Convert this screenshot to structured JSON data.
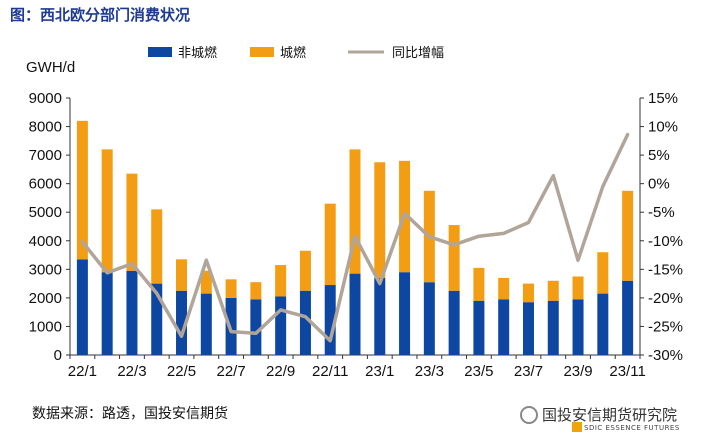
{
  "figure_title": "图：西北欧分部门消费状况",
  "source_note": "数据来源：路透，国投安信期货",
  "watermark": {
    "name": "国投安信期货研究院",
    "subtitle": "SDIC ESSENCE FUTURES"
  },
  "colors": {
    "non_city_gas": "#0d47a1",
    "city_gas": "#f29d13",
    "yoy_line": "#b1a59a",
    "title": "#1f3a93"
  },
  "chart_data": {
    "type": "bar",
    "stacked": true,
    "ylabel": "GWH/d",
    "ylim": [
      0,
      9000
    ],
    "yticks": [
      0,
      1000,
      2000,
      3000,
      4000,
      5000,
      6000,
      7000,
      8000,
      9000
    ],
    "y2lim": [
      -30,
      15
    ],
    "y2ticks": [
      "-30%",
      "-25%",
      "-20%",
      "-15%",
      "-10%",
      "-5%",
      "0%",
      "5%",
      "10%",
      "15%"
    ],
    "categories": [
      "22/1",
      "22/2",
      "22/3",
      "22/4",
      "22/5",
      "22/6",
      "22/7",
      "22/8",
      "22/9",
      "22/10",
      "22/11",
      "22/12",
      "23/1",
      "23/2",
      "23/3",
      "23/4",
      "23/5",
      "23/6",
      "23/7",
      "23/8",
      "23/9",
      "23/10",
      "23/11"
    ],
    "x_tick_labels": [
      "22/1",
      "",
      "22/3",
      "",
      "22/5",
      "",
      "22/7",
      "",
      "22/9",
      "",
      "22/11",
      "",
      "23/1",
      "",
      "23/3",
      "",
      "23/5",
      "",
      "23/7",
      "",
      "23/9",
      "",
      "23/11"
    ],
    "legend_position": "top",
    "series": [
      {
        "name": "非城燃",
        "type": "bar",
        "values": [
          3350,
          2900,
          2950,
          2500,
          2250,
          2150,
          2000,
          1950,
          2050,
          2250,
          2450,
          2850,
          2700,
          2900,
          2550,
          2250,
          1900,
          1950,
          1850,
          1900,
          1950,
          2150,
          2600
        ]
      },
      {
        "name": "城燃",
        "type": "bar",
        "values": [
          4850,
          4300,
          3400,
          2600,
          1100,
          800,
          650,
          600,
          1100,
          1400,
          2850,
          4350,
          4050,
          3900,
          3200,
          2300,
          1150,
          750,
          650,
          700,
          800,
          1450,
          3150
        ]
      },
      {
        "name": "同比增幅",
        "type": "line",
        "axis": "right",
        "values": [
          -10.2,
          -15.6,
          -14.0,
          -19.2,
          -26.7,
          -13.4,
          -25.9,
          -26.2,
          -22.1,
          -23.3,
          -27.5,
          -9.2,
          -17.5,
          -5.2,
          -9.3,
          -10.7,
          -9.2,
          -8.7,
          -6.8,
          1.4,
          -13.4,
          -0.5,
          8.6
        ]
      }
    ]
  }
}
